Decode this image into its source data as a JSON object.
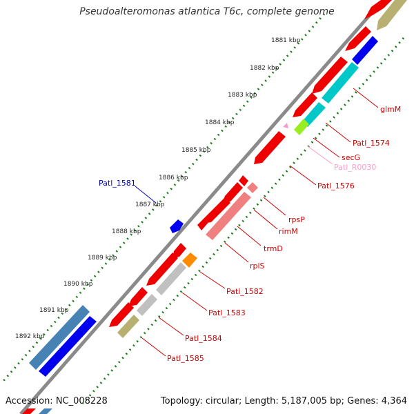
{
  "title": "Pseudoalteromonas atlantica T6c, complete genome",
  "accession_line": "Accession: NC_008228",
  "topology_line": "Topology: circular; Length: 5,187,005 bp; Genes: 4,364",
  "colors": {
    "backbone": "#7a7a7a",
    "tick_dots": "#1a7a1a",
    "forward_gene": "#ee0000",
    "rrna_like": "#f08080",
    "misc_grey": "#c0c0c0",
    "olive": "#b8b070",
    "cyan": "#00c8c8",
    "blue": "#0000ee",
    "steelblue": "#4682b4",
    "orange": "#ff8c00",
    "lime": "#99ee22",
    "pink": "#ff99cc",
    "label_red": "#cc0000",
    "label_blue": "#0000bb"
  },
  "kbp_ticks": [
    "1881 kbp",
    "1882 kbp",
    "1883 kbp",
    "1884 kbp",
    "1885 kbp",
    "1886 kbp",
    "1887 kbp",
    "1888 kbp",
    "1889 kbp",
    "1890 kbp",
    "1891 kbp",
    "1892 kbp"
  ],
  "gene_labels": [
    {
      "text": "glmM"
    },
    {
      "text": "Patl_1574"
    },
    {
      "text": "secG"
    },
    {
      "text": "Patl_R0030"
    },
    {
      "text": "Patl_1576"
    },
    {
      "text": "rpsP"
    },
    {
      "text": "rimM"
    },
    {
      "text": "trmD"
    },
    {
      "text": "rplS"
    },
    {
      "text": "Patl_1582"
    },
    {
      "text": "Patl_1583"
    },
    {
      "text": "Patl_1584"
    },
    {
      "text": "Patl_1585"
    },
    {
      "text": "Patl_1581"
    }
  ]
}
